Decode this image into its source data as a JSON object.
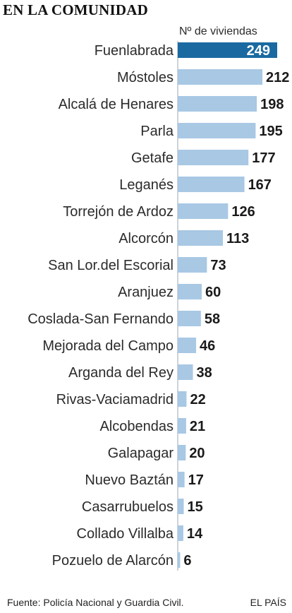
{
  "header": {
    "title": "EN LA COMUNIDAD"
  },
  "chart_data": {
    "type": "bar",
    "orientation": "horizontal",
    "title": "EN LA COMUNIDAD",
    "value_caption": "Nº de viviendas",
    "categories": [
      "Fuenlabrada",
      "Móstoles",
      "Alcalá de Henares",
      "Parla",
      "Getafe",
      "Leganés",
      "Torrejón de Ardoz",
      "Alcorcón",
      "San Lor.del Escorial",
      "Aranjuez",
      "Coslada-San Fernando",
      "Mejorada del Campo",
      "Arganda del Rey",
      "Rivas-Vaciamadrid",
      "Alcobendas",
      "Galapagar",
      "Nuevo Baztán",
      "Casarrubuelos",
      "Collado Villalba",
      "Pozuelo de Alarcón"
    ],
    "values": [
      249,
      212,
      198,
      195,
      177,
      167,
      126,
      113,
      73,
      60,
      58,
      46,
      38,
      22,
      21,
      20,
      17,
      15,
      14,
      6
    ],
    "highlight_index": 0,
    "colors": {
      "highlight": "#1a6aa1",
      "bar": "#a8c8e4"
    },
    "xlim": [
      0,
      249
    ],
    "grid": false,
    "legend": "none"
  },
  "footer": {
    "source": "Fuente: Policía Nacional y Guardia Civil.",
    "brand": "EL PAÍS"
  }
}
